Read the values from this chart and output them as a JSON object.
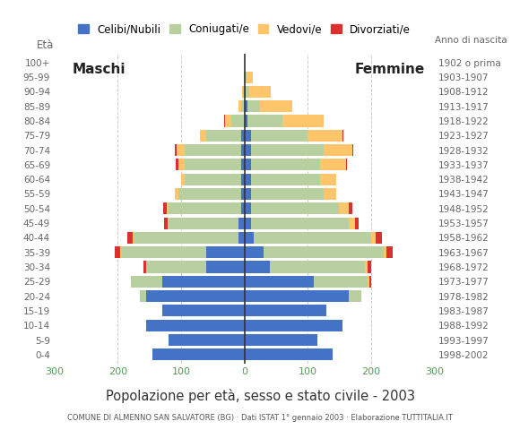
{
  "age_groups": [
    "0-4",
    "5-9",
    "10-14",
    "15-19",
    "20-24",
    "25-29",
    "30-34",
    "35-39",
    "40-44",
    "45-49",
    "50-54",
    "55-59",
    "60-64",
    "65-69",
    "70-74",
    "75-79",
    "80-84",
    "85-89",
    "90-94",
    "95-99",
    "100+"
  ],
  "birth_years": [
    "1998-2002",
    "1993-1997",
    "1988-1992",
    "1983-1987",
    "1978-1982",
    "1973-1977",
    "1968-1972",
    "1963-1967",
    "1958-1962",
    "1953-1957",
    "1948-1952",
    "1943-1947",
    "1938-1942",
    "1933-1937",
    "1928-1932",
    "1923-1927",
    "1918-1922",
    "1913-1917",
    "1908-1912",
    "1903-1907",
    "1902 o prima"
  ],
  "m_cel": [
    145,
    120,
    155,
    130,
    155,
    130,
    60,
    60,
    10,
    10,
    5,
    5,
    5,
    5,
    5,
    5,
    0,
    0,
    0,
    0,
    0
  ],
  "m_con": [
    0,
    0,
    0,
    0,
    10,
    50,
    95,
    135,
    165,
    110,
    115,
    100,
    90,
    90,
    90,
    55,
    20,
    5,
    2,
    1,
    0
  ],
  "m_ved": [
    0,
    0,
    0,
    0,
    0,
    0,
    0,
    2,
    2,
    2,
    3,
    5,
    5,
    10,
    12,
    10,
    10,
    5,
    2,
    0,
    0
  ],
  "m_div": [
    0,
    0,
    0,
    0,
    0,
    0,
    5,
    8,
    8,
    5,
    5,
    0,
    0,
    3,
    3,
    0,
    2,
    0,
    0,
    0,
    0
  ],
  "f_nub": [
    140,
    115,
    155,
    130,
    165,
    110,
    40,
    30,
    15,
    10,
    10,
    10,
    10,
    10,
    10,
    10,
    5,
    5,
    2,
    1,
    0
  ],
  "f_con": [
    0,
    0,
    0,
    0,
    20,
    85,
    150,
    190,
    185,
    155,
    140,
    115,
    110,
    110,
    115,
    90,
    55,
    20,
    5,
    2,
    0
  ],
  "f_ved": [
    0,
    0,
    0,
    0,
    0,
    2,
    5,
    5,
    8,
    10,
    15,
    20,
    25,
    40,
    45,
    55,
    65,
    50,
    35,
    10,
    0
  ],
  "f_div": [
    0,
    0,
    0,
    0,
    0,
    3,
    5,
    10,
    10,
    5,
    5,
    0,
    0,
    2,
    2,
    2,
    0,
    0,
    0,
    0,
    0
  ],
  "c_cel": "#4472c4",
  "c_con": "#b8cfa0",
  "c_ved": "#ffc56b",
  "c_div": "#d93030",
  "legend_labels": [
    "Celibi/Nubili",
    "Coniugati/e",
    "Vedovi/e",
    "Divorziati/e"
  ],
  "title": "Popolazione per età, sesso e stato civile - 2003",
  "subtitle": "COMUNE DI ALMENNO SAN SALVATORE (BG) · Dati ISTAT 1° gennaio 2003 · Elaborazione TUTTITALIA.IT",
  "xlim": 300,
  "bg_color": "#ffffff",
  "grid_color": "#cccccc",
  "tick_color": "#559955",
  "label_color": "#666666",
  "center_line_color": "#333333"
}
